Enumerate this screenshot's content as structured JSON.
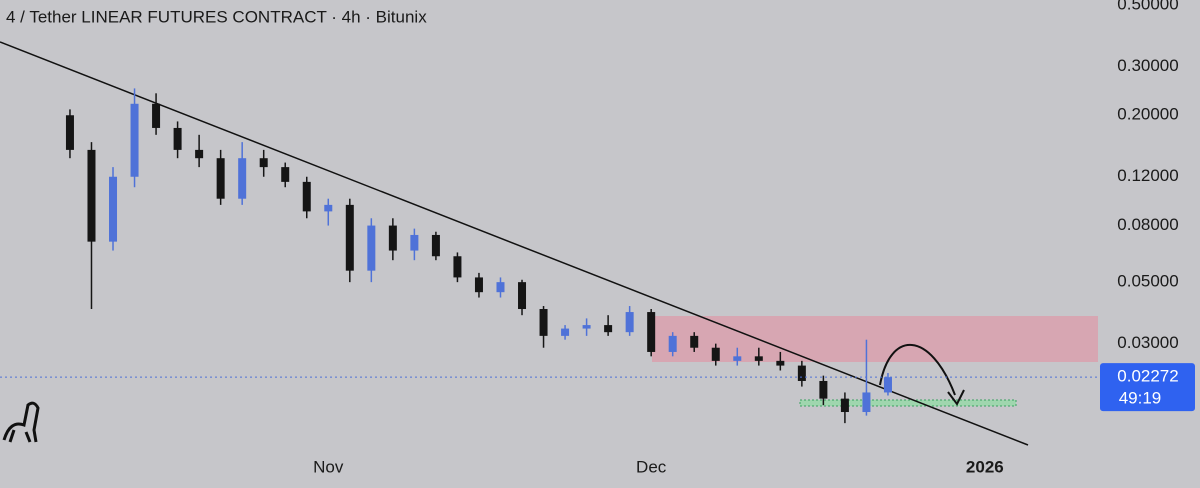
{
  "chart_data": {
    "type": "candlestick",
    "title": "4 / Tether LINEAR FUTURES CONTRACT · 4h · Bitunix",
    "x": [
      -24,
      -22,
      -20,
      -18,
      -16,
      -14,
      -12,
      -10,
      -8,
      -6,
      -4,
      -2,
      0,
      2,
      4,
      6,
      8,
      10,
      12,
      14,
      16,
      18,
      20,
      22,
      24,
      26,
      28,
      30,
      32,
      34,
      36,
      38,
      40,
      42,
      44,
      46,
      48,
      50,
      52
    ],
    "open": [
      0.2,
      0.15,
      0.07,
      0.12,
      0.22,
      0.18,
      0.15,
      0.14,
      0.1,
      0.14,
      0.13,
      0.115,
      0.09,
      0.095,
      0.055,
      0.08,
      0.065,
      0.074,
      0.062,
      0.052,
      0.046,
      0.05,
      0.04,
      0.032,
      0.034,
      0.035,
      0.033,
      0.039,
      0.028,
      0.032,
      0.029,
      0.026,
      0.027,
      0.026,
      0.025,
      0.022,
      0.019,
      0.017,
      0.02
    ],
    "high": [
      0.21,
      0.16,
      0.13,
      0.25,
      0.24,
      0.19,
      0.17,
      0.15,
      0.16,
      0.15,
      0.135,
      0.12,
      0.1,
      0.1,
      0.085,
      0.085,
      0.078,
      0.076,
      0.064,
      0.054,
      0.052,
      0.051,
      0.041,
      0.035,
      0.037,
      0.038,
      0.041,
      0.04,
      0.033,
      0.033,
      0.03,
      0.029,
      0.029,
      0.028,
      0.026,
      0.023,
      0.02,
      0.031,
      0.0235
    ],
    "low": [
      0.14,
      0.04,
      0.065,
      0.11,
      0.17,
      0.14,
      0.13,
      0.095,
      0.095,
      0.12,
      0.11,
      0.085,
      0.08,
      0.05,
      0.05,
      0.06,
      0.06,
      0.06,
      0.05,
      0.044,
      0.044,
      0.038,
      0.029,
      0.031,
      0.032,
      0.032,
      0.032,
      0.027,
      0.027,
      0.028,
      0.025,
      0.025,
      0.025,
      0.024,
      0.021,
      0.018,
      0.0155,
      0.0165,
      0.0195
    ],
    "close": [
      0.15,
      0.07,
      0.12,
      0.22,
      0.18,
      0.15,
      0.14,
      0.1,
      0.14,
      0.13,
      0.115,
      0.09,
      0.095,
      0.055,
      0.08,
      0.065,
      0.074,
      0.062,
      0.052,
      0.046,
      0.05,
      0.04,
      0.032,
      0.034,
      0.035,
      0.033,
      0.039,
      0.028,
      0.032,
      0.029,
      0.026,
      0.027,
      0.026,
      0.025,
      0.022,
      0.019,
      0.017,
      0.02,
      0.0227
    ],
    "up_color": "#4f72d8",
    "down_color": "#151515",
    "log_scale": true,
    "xlim": [
      -30.5,
      71.7
    ],
    "xticks": [
      {
        "value": 0,
        "label": "Nov"
      },
      {
        "value": 30,
        "label": "Dec"
      },
      {
        "value": 61,
        "label": "2026"
      }
    ],
    "ylim": [
      0.0124,
      0.521
    ],
    "yticks": [
      {
        "value": 0.5,
        "label": "0.50000"
      },
      {
        "value": 0.3,
        "label": "0.30000"
      },
      {
        "value": 0.2,
        "label": "0.20000"
      },
      {
        "value": 0.12,
        "label": "0.12000"
      },
      {
        "value": 0.08,
        "label": "0.08000"
      },
      {
        "value": 0.05,
        "label": "0.05000"
      },
      {
        "value": 0.03,
        "label": "0.03000"
      }
    ],
    "last_price": {
      "value": 0.02272,
      "label": "0.02272"
    },
    "countdown": "49:19"
  }
}
